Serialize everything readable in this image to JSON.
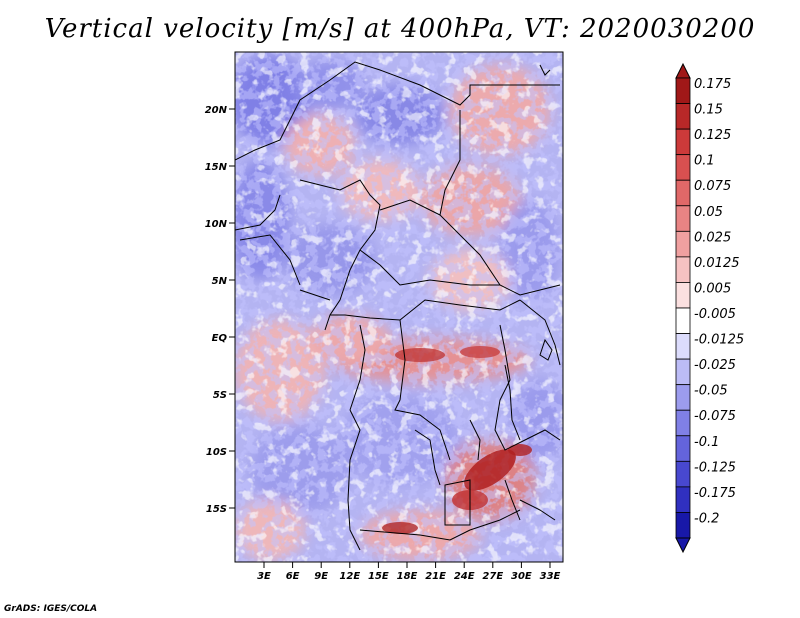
{
  "title": "Vertical velocity [m/s] at 400hPa, VT: 2020030200",
  "credit": "GrADS: IGES/COLA",
  "lat_labels": [
    "20N",
    "15N",
    "10N",
    "5N",
    "EQ",
    "5S",
    "10S",
    "15S"
  ],
  "lon_labels": [
    "3E",
    "6E",
    "9E",
    "12E",
    "15E",
    "18E",
    "21E",
    "24E",
    "27E",
    "30E",
    "33E"
  ],
  "colorbar": {
    "levels": [
      "0.175",
      "0.15",
      "0.125",
      "0.1",
      "0.075",
      "0.05",
      "0.025",
      "0.0125",
      "0.005",
      "-0.005",
      "-0.0125",
      "-0.025",
      "-0.05",
      "-0.075",
      "-0.1",
      "-0.125",
      "-0.175",
      "-0.2"
    ],
    "colors": [
      "#a01818",
      "#b82828",
      "#cc3a3a",
      "#d85050",
      "#e06868",
      "#e88484",
      "#f0a0a0",
      "#f6c2c2",
      "#fbe0e0",
      "#ffffff",
      "#dcdcfc",
      "#bcbcf6",
      "#9c9cee",
      "#8080e6",
      "#6464dc",
      "#4848d0",
      "#3030c0",
      "#1818a8"
    ]
  }
}
